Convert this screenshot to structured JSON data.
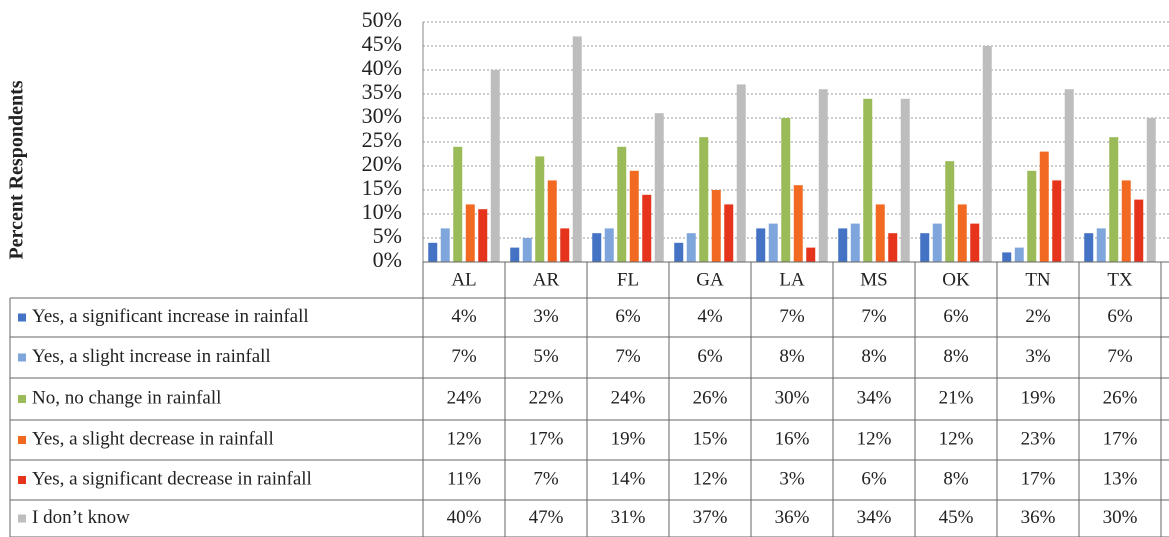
{
  "chart_data": {
    "type": "bar",
    "y_axis_label": "Percent Respondents",
    "categories": [
      "AL",
      "AR",
      "FL",
      "GA",
      "LA",
      "MS",
      "OK",
      "TN",
      "TX"
    ],
    "ylim": [
      0,
      50
    ],
    "yticks": [
      {
        "value": 0,
        "label": "0%"
      },
      {
        "value": 5,
        "label": "5%"
      },
      {
        "value": 10,
        "label": "10%"
      },
      {
        "value": 15,
        "label": "15%"
      },
      {
        "value": 20,
        "label": "20%"
      },
      {
        "value": 25,
        "label": "25%"
      },
      {
        "value": 30,
        "label": "30%"
      },
      {
        "value": 35,
        "label": "35%"
      },
      {
        "value": 40,
        "label": "40%"
      },
      {
        "value": 45,
        "label": "45%"
      },
      {
        "value": 50,
        "label": "50%"
      }
    ],
    "grid": true,
    "series": [
      {
        "name": "Yes, a significant increase in rainfall",
        "color": "#4472c4",
        "values": [
          4,
          3,
          6,
          4,
          7,
          7,
          6,
          2,
          6
        ],
        "value_labels": [
          "4%",
          "3%",
          "6%",
          "4%",
          "7%",
          "7%",
          "6%",
          "2%",
          "6%"
        ]
      },
      {
        "name": "Yes, a slight increase in rainfall",
        "color": "#7ea6dc",
        "values": [
          7,
          5,
          7,
          6,
          8,
          8,
          8,
          3,
          7
        ],
        "value_labels": [
          "7%",
          "5%",
          "7%",
          "6%",
          "8%",
          "8%",
          "8%",
          "3%",
          "7%"
        ]
      },
      {
        "name": "No, no change in rainfall",
        "color": "#9bbb59",
        "values": [
          24,
          22,
          24,
          26,
          30,
          34,
          21,
          19,
          26
        ],
        "value_labels": [
          "24%",
          "22%",
          "24%",
          "26%",
          "30%",
          "34%",
          "21%",
          "19%",
          "26%"
        ]
      },
      {
        "name": "Yes, a slight decrease in rainfall",
        "color": "#f26a21",
        "values": [
          12,
          17,
          19,
          15,
          16,
          12,
          12,
          23,
          17
        ],
        "value_labels": [
          "12%",
          "17%",
          "19%",
          "15%",
          "16%",
          "12%",
          "12%",
          "23%",
          "17%"
        ]
      },
      {
        "name": "Yes, a significant decrease in rainfall",
        "color": "#e6341c",
        "values": [
          11,
          7,
          14,
          12,
          3,
          6,
          8,
          17,
          13
        ],
        "value_labels": [
          "11%",
          "7%",
          "14%",
          "12%",
          "3%",
          "6%",
          "8%",
          "17%",
          "13%"
        ]
      },
      {
        "name": "I don’t know",
        "color": "#bdbdbd",
        "values": [
          40,
          47,
          31,
          37,
          36,
          34,
          45,
          36,
          30
        ],
        "value_labels": [
          "40%",
          "47%",
          "31%",
          "37%",
          "36%",
          "34%",
          "45%",
          "36%",
          "30%"
        ]
      }
    ]
  }
}
